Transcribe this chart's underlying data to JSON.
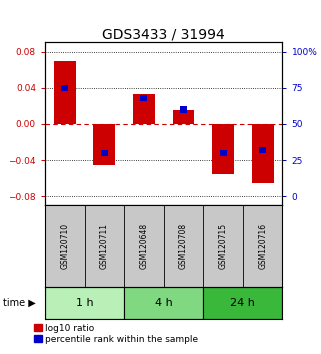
{
  "title": "GDS3433 / 31994",
  "samples": [
    "GSM120710",
    "GSM120711",
    "GSM120648",
    "GSM120708",
    "GSM120715",
    "GSM120716"
  ],
  "log10_ratio": [
    0.07,
    -0.045,
    0.033,
    0.015,
    -0.055,
    -0.065
  ],
  "percentile_rank": [
    75,
    30,
    68,
    60,
    30,
    32
  ],
  "groups": [
    {
      "label": "1 h",
      "indices": [
        0,
        1
      ],
      "color": "#b8f0b8"
    },
    {
      "label": "4 h",
      "indices": [
        2,
        3
      ],
      "color": "#80d880"
    },
    {
      "label": "24 h",
      "indices": [
        4,
        5
      ],
      "color": "#3ab83a"
    }
  ],
  "ylim": [
    -0.09,
    0.09
  ],
  "yticks_left": [
    -0.08,
    -0.04,
    0.0,
    0.04,
    0.08
  ],
  "yticks_right": [
    0,
    25,
    50,
    75,
    100
  ],
  "bar_color": "#cc0000",
  "percentile_color": "#0000cc",
  "bar_width": 0.55,
  "percentile_bar_width": 0.18,
  "background_color": "#ffffff",
  "label_area_color": "#c8c8c8",
  "zero_line_color": "#cc0000",
  "dotted_grid_color": "#000000",
  "title_fontsize": 10,
  "tick_fontsize": 6.5,
  "label_fontsize": 7,
  "legend_fontsize": 6.5,
  "sample_label_fontsize": 5.5
}
